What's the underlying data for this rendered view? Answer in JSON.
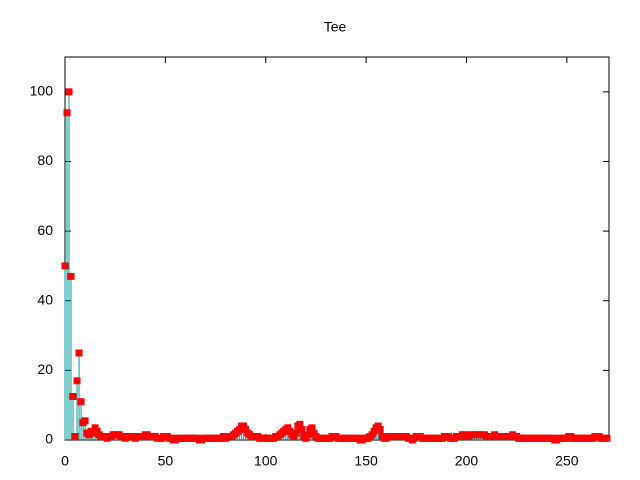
{
  "chart_data": {
    "type": "impulses-points",
    "title": "Tee",
    "impulse_color": "#009b9b",
    "point_color": "#ff0000",
    "xlim": [
      0,
      271
    ],
    "xticks": [
      0,
      50,
      100,
      150,
      200,
      250
    ],
    "ylim": [
      0,
      110
    ],
    "yticks": [
      0,
      20,
      40,
      60,
      80,
      100
    ],
    "x": [
      0,
      1,
      2,
      3,
      4,
      5,
      6,
      7,
      8,
      9,
      10,
      11,
      12,
      13,
      14,
      15,
      16,
      17,
      18,
      19,
      20,
      21,
      22,
      23,
      24,
      25,
      26,
      27,
      28,
      29,
      30,
      31,
      32,
      33,
      34,
      35,
      36,
      37,
      38,
      39,
      40,
      41,
      42,
      43,
      44,
      45,
      46,
      47,
      48,
      49,
      50,
      51,
      52,
      53,
      54,
      55,
      56,
      57,
      58,
      59,
      60,
      61,
      62,
      63,
      64,
      65,
      66,
      67,
      68,
      69,
      70,
      71,
      72,
      73,
      74,
      75,
      76,
      77,
      78,
      79,
      80,
      81,
      82,
      83,
      84,
      85,
      86,
      87,
      88,
      89,
      90,
      91,
      92,
      93,
      94,
      95,
      96,
      97,
      98,
      99,
      100,
      101,
      102,
      103,
      104,
      105,
      106,
      107,
      108,
      109,
      110,
      111,
      112,
      113,
      114,
      115,
      116,
      117,
      118,
      119,
      120,
      121,
      122,
      123,
      124,
      125,
      126,
      127,
      128,
      129,
      130,
      131,
      132,
      133,
      134,
      135,
      136,
      137,
      138,
      139,
      140,
      141,
      142,
      143,
      144,
      145,
      146,
      147,
      148,
      149,
      150,
      151,
      152,
      153,
      154,
      155,
      156,
      157,
      158,
      159,
      160,
      161,
      162,
      163,
      164,
      165,
      166,
      167,
      168,
      169,
      170,
      171,
      172,
      173,
      174,
      175,
      176,
      177,
      178,
      179,
      180,
      181,
      182,
      183,
      184,
      185,
      186,
      187,
      188,
      189,
      190,
      191,
      192,
      193,
      194,
      195,
      196,
      197,
      198,
      199,
      200,
      201,
      202,
      203,
      204,
      205,
      206,
      207,
      208,
      209,
      210,
      211,
      212,
      213,
      214,
      215,
      216,
      217,
      218,
      219,
      220,
      221,
      222,
      223,
      224,
      225,
      226,
      227,
      228,
      229,
      230,
      231,
      232,
      233,
      234,
      235,
      236,
      237,
      238,
      239,
      240,
      241,
      242,
      243,
      244,
      245,
      246,
      247,
      248,
      249,
      250,
      251,
      252,
      253,
      254,
      255,
      256,
      257,
      258,
      259,
      260,
      261,
      262,
      263,
      264,
      265,
      266,
      267,
      268,
      269,
      270
    ],
    "values": [
      50,
      94,
      100,
      47,
      12.5,
      1,
      17,
      25,
      11,
      5,
      5.5,
      2,
      1.5,
      2.5,
      2,
      3.5,
      2.5,
      1.5,
      1,
      1,
      1,
      0.5,
      1,
      1,
      1.5,
      1.5,
      1.5,
      1.5,
      1,
      1,
      0.5,
      1,
      1,
      1,
      1,
      0.5,
      1,
      1,
      1,
      1,
      1.5,
      1.5,
      1,
      1,
      1,
      1,
      0.5,
      0.5,
      0.5,
      1,
      1,
      1,
      0.5,
      0.5,
      0,
      0,
      0.5,
      0.5,
      0.5,
      0.5,
      0.5,
      0.5,
      0.5,
      0.5,
      0.5,
      0.5,
      0.5,
      0,
      0,
      0.5,
      0.5,
      0.5,
      0.5,
      0.5,
      0.5,
      0.5,
      0.5,
      0.5,
      0.5,
      1,
      0.5,
      1,
      1,
      1,
      1.5,
      2,
      2.5,
      3,
      4,
      4,
      3,
      2,
      1.5,
      1,
      1,
      1,
      1,
      0.5,
      0.5,
      0.5,
      0.5,
      0.5,
      0.5,
      0.5,
      0.5,
      1,
      1,
      1.5,
      2,
      2.5,
      3,
      3.5,
      2.5,
      1.5,
      1,
      2,
      4,
      4.5,
      3,
      1,
      0.5,
      1.5,
      3,
      3.5,
      2,
      1,
      0.5,
      0.5,
      0.5,
      0.5,
      0.5,
      0.5,
      0.5,
      1,
      1,
      1,
      0.5,
      0.5,
      0.5,
      0.5,
      0.5,
      0.5,
      0.5,
      0.5,
      0.5,
      0.5,
      0.5,
      0,
      0,
      0.5,
      0.5,
      0.5,
      1,
      1.5,
      2.5,
      3.5,
      4,
      3,
      1,
      0.5,
      0.5,
      1,
      1,
      1,
      1,
      1,
      1,
      1,
      1,
      1,
      1,
      0.5,
      0.5,
      0,
      0.5,
      1,
      1,
      1,
      0.5,
      0.5,
      0.5,
      0.5,
      0.5,
      0.5,
      0.5,
      0.5,
      0.5,
      0.5,
      0.5,
      1,
      1,
      1,
      0.5,
      0.5,
      0.5,
      1,
      1,
      1,
      1.5,
      1.5,
      1,
      1,
      1.5,
      1.5,
      1.5,
      1.5,
      1.5,
      1.5,
      1.5,
      1.5,
      1,
      1,
      1,
      1,
      1.5,
      1,
      1,
      1,
      1,
      1,
      1,
      1,
      1,
      1.5,
      1,
      1,
      0.5,
      0.5,
      0.5,
      0.5,
      0.5,
      0.5,
      0.5,
      0.5,
      0.5,
      0.5,
      0.5,
      0.5,
      0.5,
      0.5,
      0.5,
      0.5,
      0.5,
      0.5,
      0,
      0,
      0.5,
      0.5,
      0.5,
      0.5,
      0.5,
      1,
      1,
      0.5,
      0.5,
      0.5,
      0.5,
      0.5,
      0.5,
      0.5,
      0.5,
      0.5,
      0.5,
      0.5,
      1,
      1,
      1,
      0.5,
      0.5,
      0.5,
      0.5
    ]
  }
}
